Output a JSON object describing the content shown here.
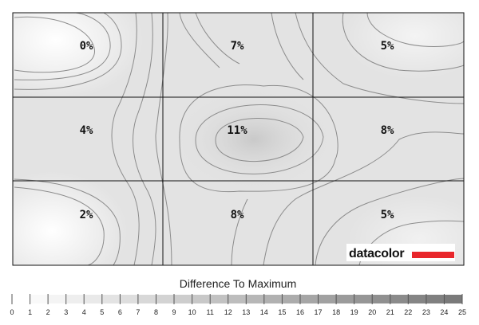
{
  "chart_data": {
    "type": "heatmap",
    "title": "",
    "rows": 3,
    "cols": 3,
    "values": [
      [
        0,
        7,
        5
      ],
      [
        4,
        11,
        8
      ],
      [
        2,
        8,
        5
      ]
    ],
    "cell_labels": [
      [
        "0%",
        "7%",
        "5%"
      ],
      [
        "4%",
        "11%",
        "8%"
      ],
      [
        "2%",
        "8%",
        "5%"
      ]
    ],
    "legend": {
      "title": "Difference To Maximum",
      "min": 0,
      "max": 25,
      "ticks": [
        "0",
        "1",
        "2",
        "3",
        "4",
        "5",
        "6",
        "7",
        "8",
        "9",
        "10",
        "11",
        "12",
        "13",
        "14",
        "15",
        "16",
        "17",
        "18",
        "19",
        "20",
        "21",
        "22",
        "23",
        "24",
        "25"
      ]
    },
    "colors": {
      "low": "#ffffff",
      "high": "#7a7a7a",
      "contour": "#8c8c8c",
      "grid": "#111111",
      "brand_red": "#e8262b"
    }
  },
  "logo": {
    "text": "datacolor"
  }
}
